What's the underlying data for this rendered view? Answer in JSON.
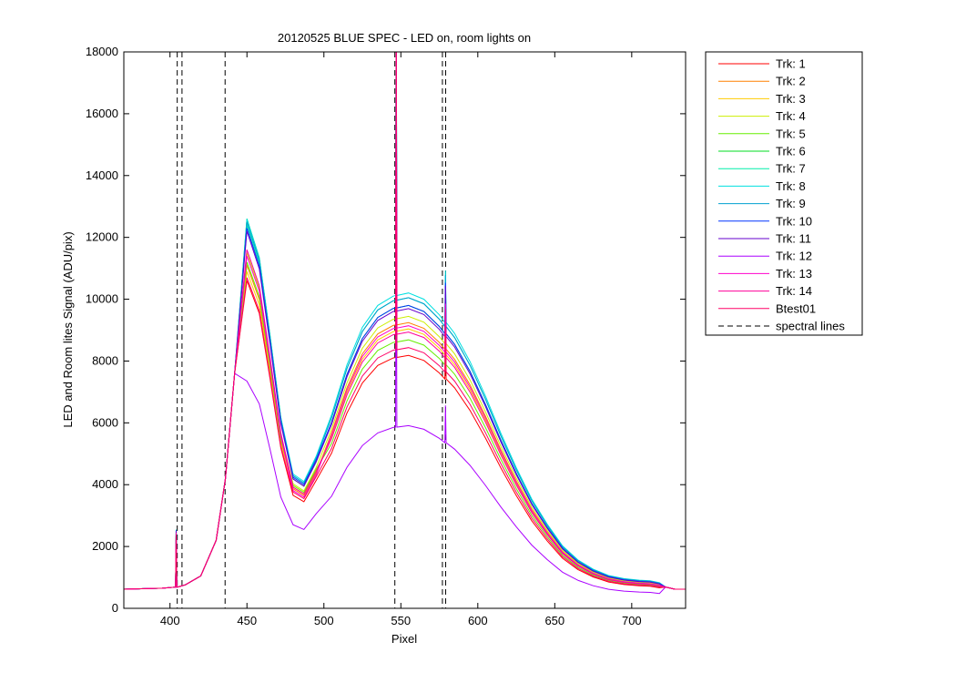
{
  "chart_data": {
    "type": "line",
    "title": "20120525 BLUE SPEC - LED on, room lights on",
    "xlabel": "Pixel",
    "ylabel": "LED and Room lites Signal (ADU/pix)",
    "xlim": [
      370,
      735
    ],
    "ylim": [
      0,
      18000
    ],
    "x_ticks": [
      "400",
      "450",
      "500",
      "550",
      "600",
      "650",
      "700"
    ],
    "y_ticks": [
      "0",
      "2000",
      "4000",
      "6000",
      "8000",
      "10000",
      "12000",
      "14000",
      "16000",
      "18000"
    ],
    "grid": false,
    "legend_position": "outside-top-right",
    "profile_x": [
      370,
      395,
      405,
      410,
      420,
      430,
      436,
      442,
      450,
      458,
      465,
      472,
      480,
      487,
      495,
      505,
      515,
      525,
      535,
      545,
      555,
      565,
      575,
      585,
      595,
      605,
      615,
      625,
      635,
      645,
      655,
      665,
      675,
      685,
      695,
      705,
      712,
      718,
      722,
      728,
      735
    ],
    "spikes": [
      [
        404,
        0.1
      ],
      [
        436,
        0.55
      ],
      [
        547,
        0.58
      ],
      [
        579,
        0.09
      ]
    ],
    "series": [
      {
        "name": "Trk: 1",
        "color": "#ff0000",
        "peak1": 10600,
        "trough": 3450,
        "peak2": 8100
      },
      {
        "name": "Trk: 2",
        "color": "#ff8000",
        "peak1": 11100,
        "trough": 3650,
        "peak2": 9150
      },
      {
        "name": "Trk: 3",
        "color": "#ffcc00",
        "peak1": 10900,
        "trough": 3700,
        "peak2": 8950
      },
      {
        "name": "Trk: 4",
        "color": "#ccee00",
        "peak1": 11500,
        "trough": 3800,
        "peak2": 9350
      },
      {
        "name": "Trk: 5",
        "color": "#66ee00",
        "peak1": 11200,
        "trough": 3750,
        "peak2": 8600
      },
      {
        "name": "Trk: 6",
        "color": "#00dd22",
        "peak1": 12600,
        "trough": 3950,
        "peak2": 9700
      },
      {
        "name": "Trk: 7",
        "color": "#00eeaa",
        "peak1": 12400,
        "trough": 4050,
        "peak2": 9950
      },
      {
        "name": "Trk: 8",
        "color": "#00e0e0",
        "peak1": 12600,
        "trough": 4100,
        "peak2": 10100
      },
      {
        "name": "Trk: 9",
        "color": "#00a0d0",
        "peak1": 12500,
        "trough": 4050,
        "peak2": 9950
      },
      {
        "name": "Trk: 10",
        "color": "#0033ff",
        "peak1": 12300,
        "trough": 4000,
        "peak2": 9700
      },
      {
        "name": "Trk: 11",
        "color": "#6600cc",
        "peak1": 12200,
        "trough": 3950,
        "peak2": 9600
      },
      {
        "name": "Trk: 12",
        "color": "#aa00ff",
        "peak1": 7350,
        "trough": 2550,
        "peak2": 5850
      },
      {
        "name": "Trk: 13",
        "color": "#ff00cc",
        "peak1": 11400,
        "trough": 3600,
        "peak2": 9050
      },
      {
        "name": "Trk: 14",
        "color": "#ff0099",
        "peak1": 11600,
        "trough": 3700,
        "peak2": 8850
      },
      {
        "name": "Btest01",
        "color": "#ff0066",
        "peak1": 10700,
        "trough": 3550,
        "peak2": 8350
      }
    ],
    "spectral_lines_label": "spectral lines",
    "spectral_lines_x": [
      404.7,
      407.8,
      435.8,
      546.1,
      577.0,
      579.1
    ]
  }
}
